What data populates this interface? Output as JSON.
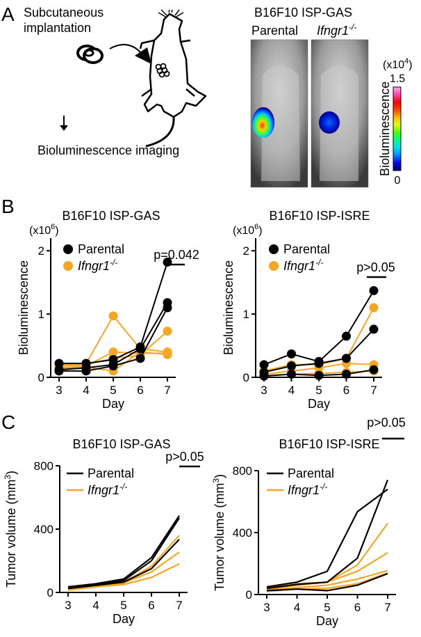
{
  "panel_a": {
    "letter": "A",
    "implant_line1": "Subcutaneous",
    "implant_line2": "implantation",
    "imaging_label": "Bioluminescence imaging",
    "image_title": "B16F10 ISP-GAS",
    "parental_label": "Parental",
    "ko_label": "Ifngr1",
    "ko_sup": "-/-",
    "scale": {
      "unit_prefix": "(x10",
      "unit_exp": "4",
      "unit_suffix": ")",
      "max_label": "1.5",
      "min_label": "0",
      "axis_label": "Bioluminescence",
      "colors": [
        "#000066",
        "#0000ff",
        "#0088ff",
        "#00ddff",
        "#00ff88",
        "#44ff00",
        "#ddff00",
        "#ffbb00",
        "#ff4400",
        "#ff0000",
        "#ff44aa",
        "#ffaaee"
      ]
    }
  },
  "panel_b": {
    "letter": "B",
    "legend": {
      "parental": "Parental",
      "ko": "Ifngr1",
      "ko_sup": "-/-"
    },
    "colors": {
      "parental": "#000000",
      "ko": "#f5a623"
    }
  },
  "panel_c": {
    "letter": "C",
    "legend": {
      "parental": "Parental",
      "ko": "Ifngr1",
      "ko_sup": "-/-"
    }
  },
  "chart_data": [
    {
      "type": "line",
      "panel": "B-left",
      "title": "B16F10 ISP-GAS",
      "xlabel": "Day",
      "ylabel": "Bioluminescence",
      "y_multiplier": "(x10",
      "y_multiplier_exp": "6",
      "x": [
        3,
        4,
        5,
        6,
        7
      ],
      "ylim": [
        0,
        2.2
      ],
      "yticks": [
        0,
        1,
        2
      ],
      "annotation": "p=0.042",
      "series": [
        {
          "name": "Parental",
          "group": "parental",
          "values": [
            0.22,
            0.22,
            0.28,
            0.48,
            1.82
          ]
        },
        {
          "name": "Parental",
          "group": "parental",
          "values": [
            0.12,
            0.15,
            0.2,
            0.45,
            1.18
          ]
        },
        {
          "name": "Parental",
          "group": "parental",
          "values": [
            0.1,
            0.1,
            0.18,
            0.3,
            1.1
          ]
        },
        {
          "name": "Ifngr1-/-",
          "group": "ko",
          "values": [
            0.2,
            0.22,
            0.97,
            0.45,
            0.4
          ]
        },
        {
          "name": "Ifngr1-/-",
          "group": "ko",
          "values": [
            0.15,
            0.18,
            0.4,
            0.38,
            0.38
          ]
        },
        {
          "name": "Ifngr1-/-",
          "group": "ko",
          "values": [
            0.18,
            0.2,
            0.3,
            0.35,
            0.73
          ]
        },
        {
          "name": "Ifngr1-/-",
          "group": "ko",
          "values": [
            0.14,
            0.16,
            0.1,
            0.4,
            0.36
          ]
        }
      ]
    },
    {
      "type": "line",
      "panel": "B-right",
      "title": "B16F10 ISP-ISRE",
      "xlabel": "Day",
      "ylabel": "Bioluminescence",
      "y_multiplier": "(x10",
      "y_multiplier_exp": "6",
      "x": [
        3,
        4,
        5,
        6,
        7
      ],
      "ylim": [
        0,
        2.2
      ],
      "yticks": [
        0,
        1,
        2
      ],
      "annotation": "p>0.05",
      "series": [
        {
          "name": "Parental",
          "group": "parental",
          "values": [
            0.2,
            0.37,
            0.25,
            0.65,
            1.37
          ]
        },
        {
          "name": "Parental",
          "group": "parental",
          "values": [
            0.08,
            0.18,
            0.22,
            0.3,
            0.76
          ]
        },
        {
          "name": "Parental",
          "group": "parental",
          "values": [
            0.02,
            0.05,
            0.03,
            0.05,
            0.12
          ]
        },
        {
          "name": "Ifngr1-/-",
          "group": "ko",
          "values": [
            0.1,
            0.2,
            0.2,
            0.3,
            1.1
          ]
        },
        {
          "name": "Ifngr1-/-",
          "group": "ko",
          "values": [
            0.05,
            0.1,
            0.15,
            0.22,
            0.2
          ]
        },
        {
          "name": "Ifngr1-/-",
          "group": "ko",
          "values": [
            0.03,
            0.05,
            0.06,
            0.08,
            0.1
          ]
        }
      ]
    },
    {
      "type": "line",
      "panel": "C-left",
      "title": "B16F10 ISP-GAS",
      "xlabel": "Day",
      "ylabel": "Tumor volume (mm",
      "ylabel_sup": "3",
      "ylabel_end": ")",
      "x": [
        3,
        4,
        5,
        6,
        7
      ],
      "ylim": [
        0,
        800
      ],
      "yticks": [
        0,
        400,
        800
      ],
      "annotation": "p>0.05",
      "series": [
        {
          "name": "Parental",
          "group": "parental",
          "values": [
            35,
            55,
            85,
            220,
            485
          ]
        },
        {
          "name": "Parental",
          "group": "parental",
          "values": [
            30,
            50,
            75,
            200,
            470
          ]
        },
        {
          "name": "Parental",
          "group": "parental",
          "values": [
            25,
            45,
            65,
            150,
            335
          ]
        },
        {
          "name": "Ifngr1-/-",
          "group": "ko",
          "values": [
            25,
            45,
            65,
            165,
            360
          ]
        },
        {
          "name": "Ifngr1-/-",
          "group": "ko",
          "values": [
            20,
            40,
            60,
            130,
            255
          ]
        },
        {
          "name": "Ifngr1-/-",
          "group": "ko",
          "values": [
            15,
            35,
            50,
            95,
            180
          ]
        }
      ]
    },
    {
      "type": "line",
      "panel": "C-right",
      "title": "B16F10 ISP-ISRE",
      "xlabel": "Day",
      "ylabel": "Tumor volume (mm",
      "ylabel_sup": "3",
      "ylabel_end": ")",
      "x": [
        3,
        4,
        5,
        6,
        7
      ],
      "ylim": [
        0,
        800
      ],
      "yticks": [
        0,
        400,
        800
      ],
      "annotation": "p>0.05",
      "series": [
        {
          "name": "Parental",
          "group": "parental",
          "values": [
            50,
            80,
            150,
            535,
            680
          ]
        },
        {
          "name": "Parental",
          "group": "parental",
          "values": [
            40,
            65,
            80,
            235,
            740
          ]
        },
        {
          "name": "Parental",
          "group": "parental",
          "values": [
            25,
            35,
            25,
            60,
            135
          ]
        },
        {
          "name": "Ifngr1-/-",
          "group": "ko",
          "values": [
            45,
            70,
            80,
            190,
            460
          ]
        },
        {
          "name": "Ifngr1-/-",
          "group": "ko",
          "values": [
            35,
            60,
            80,
            150,
            270
          ]
        },
        {
          "name": "Ifngr1-/-",
          "group": "ko",
          "values": [
            30,
            45,
            60,
            100,
            155
          ]
        },
        {
          "name": "Ifngr1-/-",
          "group": "ko",
          "values": [
            20,
            35,
            40,
            70,
            140
          ]
        }
      ]
    }
  ]
}
